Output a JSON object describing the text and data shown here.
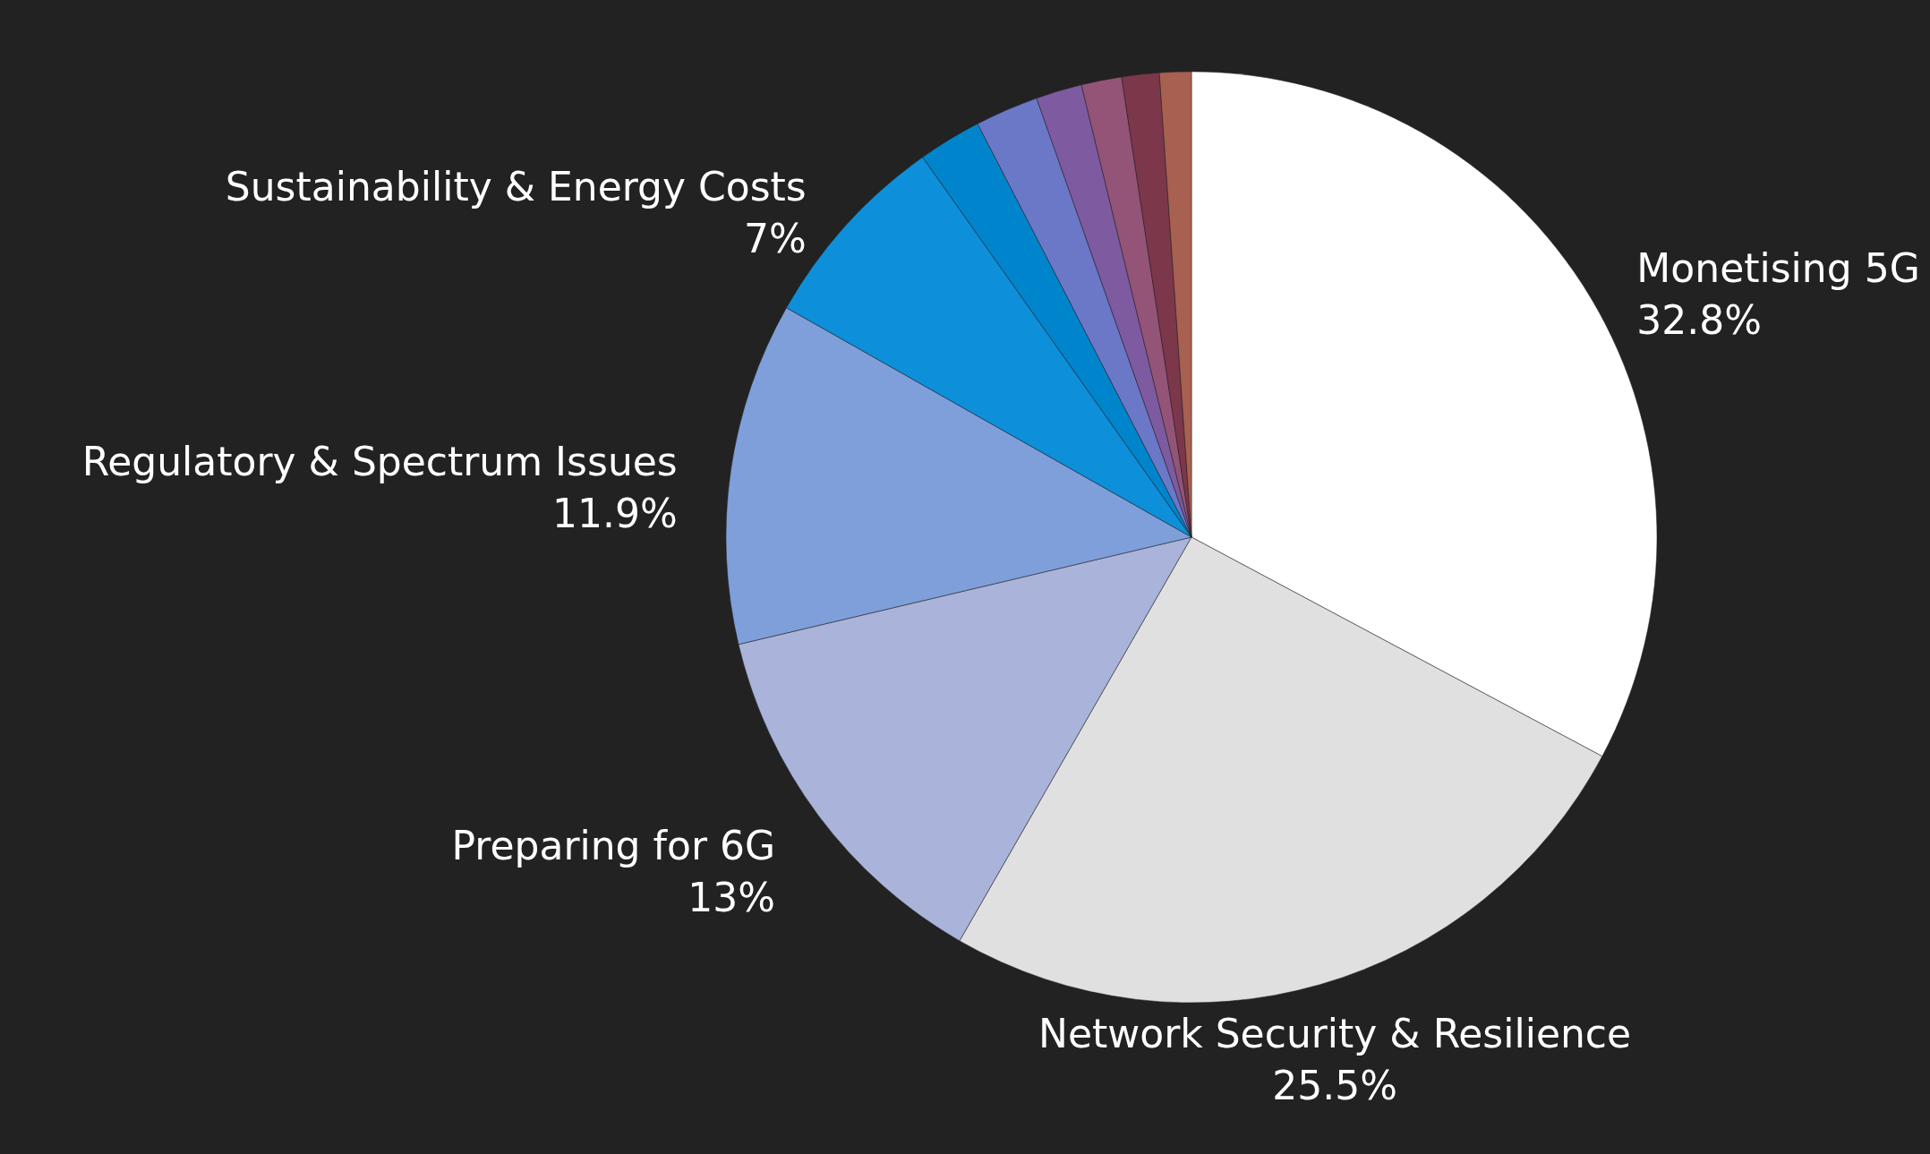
{
  "chart_data": {
    "type": "pie",
    "categories": [
      "Monetising 5G",
      "Network Security & Resilience",
      "Preparing for 6G",
      "Regulatory & Spectrum Issues",
      "Sustainability & Energy Costs",
      null,
      null,
      null,
      null,
      null,
      null
    ],
    "values": [
      32.8,
      25.5,
      13,
      11.9,
      7,
      2.2,
      2.2,
      1.6,
      1.4,
      1.3,
      1.1
    ],
    "value_labels": [
      "32.8%",
      "25.5%",
      "13%",
      "11.9%",
      "7%",
      null,
      null,
      null,
      null,
      null,
      null
    ],
    "colors": [
      "#ffffff",
      "#e0e0e0",
      "#aab3d9",
      "#7f9fdb",
      "#0e8fd9",
      "#0085cc",
      "#6b78c8",
      "#7e5aa0",
      "#935478",
      "#7c374a",
      "#a86050"
    ]
  }
}
